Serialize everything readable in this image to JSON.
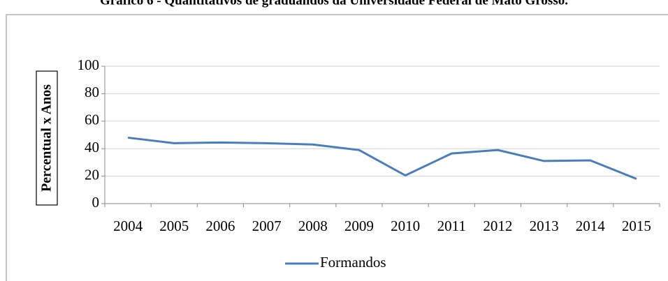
{
  "chart_data": {
    "type": "line",
    "title": "Gráfico 6 - Quantitativos de graduandos da Universidade Federal de Mato Grosso.",
    "y_label": "Percentual x Anos",
    "categories": [
      "2004",
      "2005",
      "2006",
      "2007",
      "2008",
      "2009",
      "2010",
      "2011",
      "2012",
      "2013",
      "2014",
      "2015"
    ],
    "series": [
      {
        "name": "Formandos",
        "color": "#4a7ebb",
        "values": [
          48,
          44,
          44.5,
          44,
          43,
          39,
          20.5,
          36.5,
          39,
          31,
          31.5,
          18
        ]
      }
    ],
    "ylim": [
      0,
      100
    ],
    "yticks": [
      0,
      20,
      40,
      60,
      80,
      100
    ],
    "grid": true,
    "legend": "bottom"
  }
}
